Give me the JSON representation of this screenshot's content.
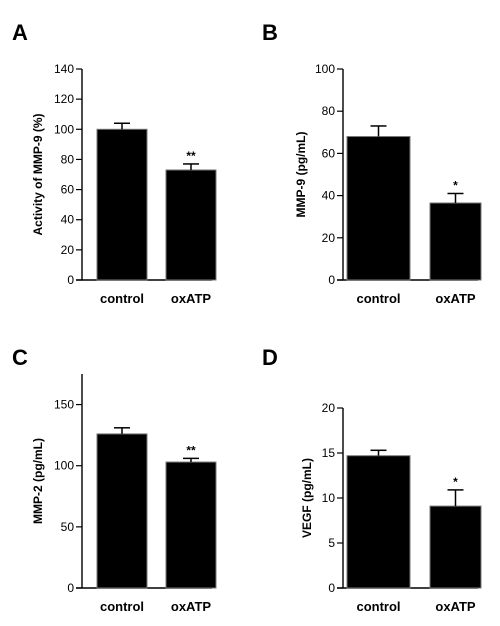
{
  "chart_data": [
    {
      "panel": "A",
      "type": "bar",
      "categories": [
        "control",
        "oxATP"
      ],
      "values": [
        100,
        73
      ],
      "errors": [
        4,
        4
      ],
      "significance": [
        "",
        "**"
      ],
      "ylabel": "Activity of MMP-9 (%)",
      "ylim": [
        0,
        140
      ],
      "yticks": [
        0,
        20,
        40,
        60,
        80,
        100,
        120,
        140
      ],
      "grid": false
    },
    {
      "panel": "B",
      "type": "bar",
      "categories": [
        "control",
        "oxATP"
      ],
      "values": [
        68,
        36.5
      ],
      "errors": [
        5,
        4.5
      ],
      "significance": [
        "",
        "*"
      ],
      "ylabel": "MMP-9 (pg/mL)",
      "ylim": [
        0,
        100
      ],
      "yticks": [
        0,
        20,
        40,
        60,
        80,
        100
      ],
      "grid": false
    },
    {
      "panel": "C",
      "type": "bar",
      "categories": [
        "control",
        "oxATP"
      ],
      "values": [
        126,
        103
      ],
      "errors": [
        5,
        3
      ],
      "significance": [
        "",
        "**"
      ],
      "ylabel": "MMP-2 (pg/mL)",
      "ylim": [
        0,
        175
      ],
      "yticks": [
        0,
        50,
        100,
        150
      ],
      "grid": false
    },
    {
      "panel": "D",
      "type": "bar",
      "categories": [
        "control",
        "oxATP"
      ],
      "values": [
        14.7,
        9.1
      ],
      "errors": [
        0.6,
        1.8
      ],
      "significance": [
        "",
        "*"
      ],
      "ylabel": "VEGF (pg/mL)",
      "ylim": [
        0,
        20
      ],
      "yticks": [
        0,
        5,
        10,
        15,
        20
      ],
      "grid": false
    }
  ]
}
